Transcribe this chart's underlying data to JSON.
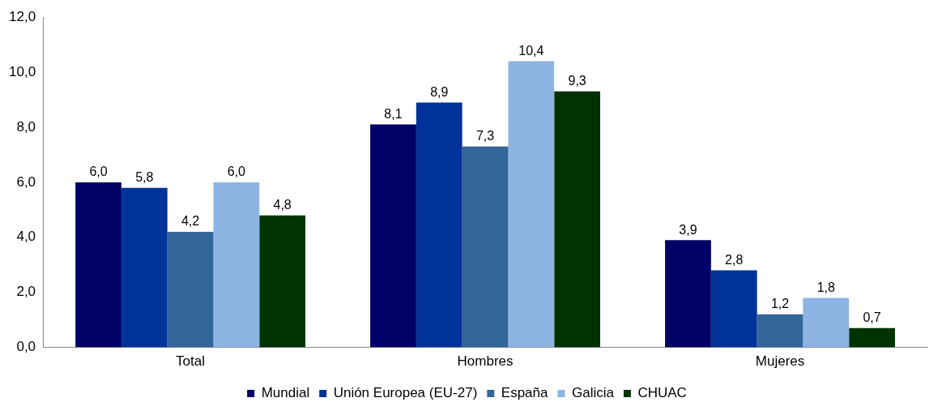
{
  "chart_data": {
    "type": "bar",
    "categories": [
      "Total",
      "Hombres",
      "Mujeres"
    ],
    "series": [
      {
        "name": "Mundial",
        "color": "#000066",
        "values": [
          6.0,
          8.1,
          3.9
        ],
        "value_labels": [
          "6,0",
          "8,1",
          "3,9"
        ]
      },
      {
        "name": "Unión Europea (EU-27)",
        "color": "#003399",
        "values": [
          5.8,
          8.9,
          2.8
        ],
        "value_labels": [
          "5,8",
          "8,9",
          "2,8"
        ]
      },
      {
        "name": "España",
        "color": "#336699",
        "values": [
          4.2,
          7.3,
          1.2
        ],
        "value_labels": [
          "4,2",
          "7,3",
          "1,2"
        ]
      },
      {
        "name": "Galicia",
        "color": "#8eb4e3",
        "values": [
          6.0,
          10.4,
          1.8
        ],
        "value_labels": [
          "6,0",
          "10,4",
          "1,8"
        ]
      },
      {
        "name": "CHUAC",
        "color": "#003300",
        "values": [
          4.8,
          9.3,
          0.7
        ],
        "value_labels": [
          "4,8",
          "9,3",
          "0,7"
        ]
      }
    ],
    "ylim": [
      0,
      12
    ],
    "yticks": [
      {
        "value": 0,
        "label": "0,0"
      },
      {
        "value": 2,
        "label": "2,0"
      },
      {
        "value": 4,
        "label": "4,0"
      },
      {
        "value": 6,
        "label": "6,0"
      },
      {
        "value": 8,
        "label": "8,0"
      },
      {
        "value": 10,
        "label": "10,0"
      },
      {
        "value": 12,
        "label": "12,0"
      }
    ],
    "grid": false,
    "legend": "bottom"
  }
}
